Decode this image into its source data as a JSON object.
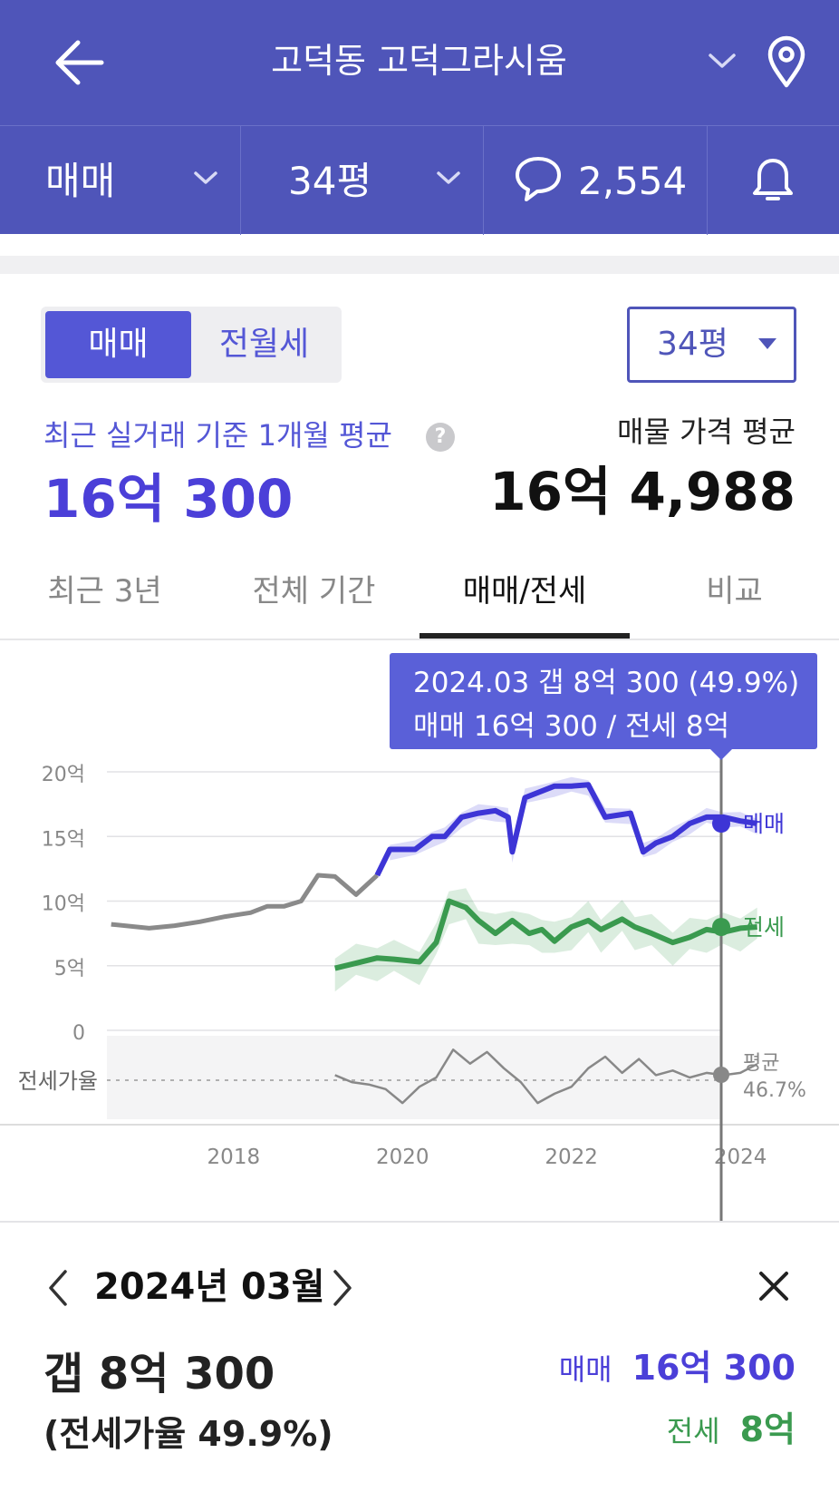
{
  "header": {
    "title": "고덕동 고덕그라시움",
    "sub_filters": {
      "deal_type": "매매",
      "area": "34평",
      "comment_count": "2,554"
    }
  },
  "summary": {
    "segment": {
      "active": "매매",
      "inactive": "전월세"
    },
    "area_select": "34평",
    "recent_label": "최근 실거래 기준 1개월 평균",
    "help_glyph": "?",
    "recent_value": "16억 300",
    "listing_label": "매물 가격 평균",
    "listing_value": "16억 4,988"
  },
  "tabs": [
    {
      "label": "최근 3년",
      "active": false
    },
    {
      "label": "전체 기간",
      "active": false
    },
    {
      "label": "매매/전세",
      "active": true
    },
    {
      "label": "비교",
      "active": false
    }
  ],
  "tooltip": {
    "line1": "2024.03  갭 8억 300 (49.9%)",
    "line2": "매매 16억 300 / 전세 8억"
  },
  "colors": {
    "header_bg": "#4f55b9",
    "sale": "#3d35d6",
    "jeonse": "#3a9a4f",
    "past": "#8a8a8a"
  },
  "chart_data": {
    "type": "line",
    "y_tick_labels": [
      "20억",
      "15억",
      "10억",
      "5억",
      "0"
    ],
    "ylim": [
      0,
      20
    ],
    "ratio_band_label": "전세가율",
    "x_tick_labels": [
      "2018",
      "2020",
      "2022",
      "2024"
    ],
    "series": [
      {
        "name": "매매",
        "x": [
          2016.55,
          2017.0,
          2017.3,
          2017.6,
          2017.9,
          2018.2,
          2018.4,
          2018.6,
          2018.8,
          2019.0,
          2019.2,
          2019.45,
          2019.7,
          2019.85,
          2020.15,
          2020.35,
          2020.5,
          2020.7,
          2020.9,
          2021.1,
          2021.25,
          2021.3,
          2021.45,
          2021.8,
          2022.0,
          2022.2,
          2022.4,
          2022.7,
          2022.85,
          2023.0,
          2023.2,
          2023.4,
          2023.6,
          2023.8,
          2024.0,
          2024.2
        ],
        "values": [
          8.2,
          7.9,
          8.1,
          8.4,
          8.8,
          9.1,
          9.6,
          9.6,
          10.0,
          12.0,
          11.9,
          10.5,
          12.0,
          14.0,
          14.0,
          15.0,
          15.0,
          16.5,
          16.8,
          17.0,
          16.5,
          13.8,
          18.0,
          18.9,
          18.9,
          19.0,
          16.5,
          16.8,
          13.8,
          14.5,
          15.0,
          16.0,
          16.5,
          16.5,
          16.2,
          16.0
        ]
      },
      {
        "name": "전세",
        "x": [
          2019.2,
          2019.45,
          2019.7,
          2019.9,
          2020.2,
          2020.4,
          2020.55,
          2020.75,
          2020.9,
          2021.1,
          2021.3,
          2021.5,
          2021.65,
          2021.8,
          2022.0,
          2022.2,
          2022.35,
          2022.6,
          2022.75,
          2022.95,
          2023.2,
          2023.4,
          2023.6,
          2023.8,
          2024.0,
          2024.2
        ],
        "values": [
          4.8,
          5.2,
          5.6,
          5.5,
          5.3,
          6.8,
          10.0,
          9.5,
          8.5,
          7.5,
          8.5,
          7.5,
          7.8,
          6.9,
          8.0,
          8.5,
          7.8,
          8.6,
          8.0,
          7.5,
          6.8,
          7.2,
          7.8,
          7.6,
          7.9,
          8.0
        ]
      },
      {
        "name": "전세가율",
        "x": [
          2019.2,
          2019.4,
          2019.6,
          2019.8,
          2020.0,
          2020.2,
          2020.4,
          2020.6,
          2020.8,
          2021.0,
          2021.2,
          2021.4,
          2021.6,
          2021.8,
          2022.0,
          2022.2,
          2022.4,
          2022.6,
          2022.8,
          2023.0,
          2023.2,
          2023.4,
          2023.6,
          2023.8,
          2024.0,
          2024.2
        ],
        "values": [
          47.5,
          46.0,
          45.5,
          44.5,
          41.5,
          45.0,
          47.0,
          53.0,
          50.0,
          52.5,
          49.0,
          46.0,
          41.5,
          43.5,
          45.0,
          49.0,
          51.5,
          48.0,
          51.0,
          47.5,
          48.5,
          47.0,
          48.0,
          47.5,
          48.0,
          49.9
        ]
      }
    ],
    "average_label": "평균",
    "average_value": "46.7%",
    "end_labels": [
      "매매",
      "전세"
    ]
  },
  "detail": {
    "period": "2024년 03월",
    "gap": "갭 8억 300",
    "ratio": "(전세가율 49.9%)",
    "sale_label": "매매",
    "sale_value": "16억 300",
    "jeonse_label": "전세",
    "jeonse_value": "8억"
  }
}
